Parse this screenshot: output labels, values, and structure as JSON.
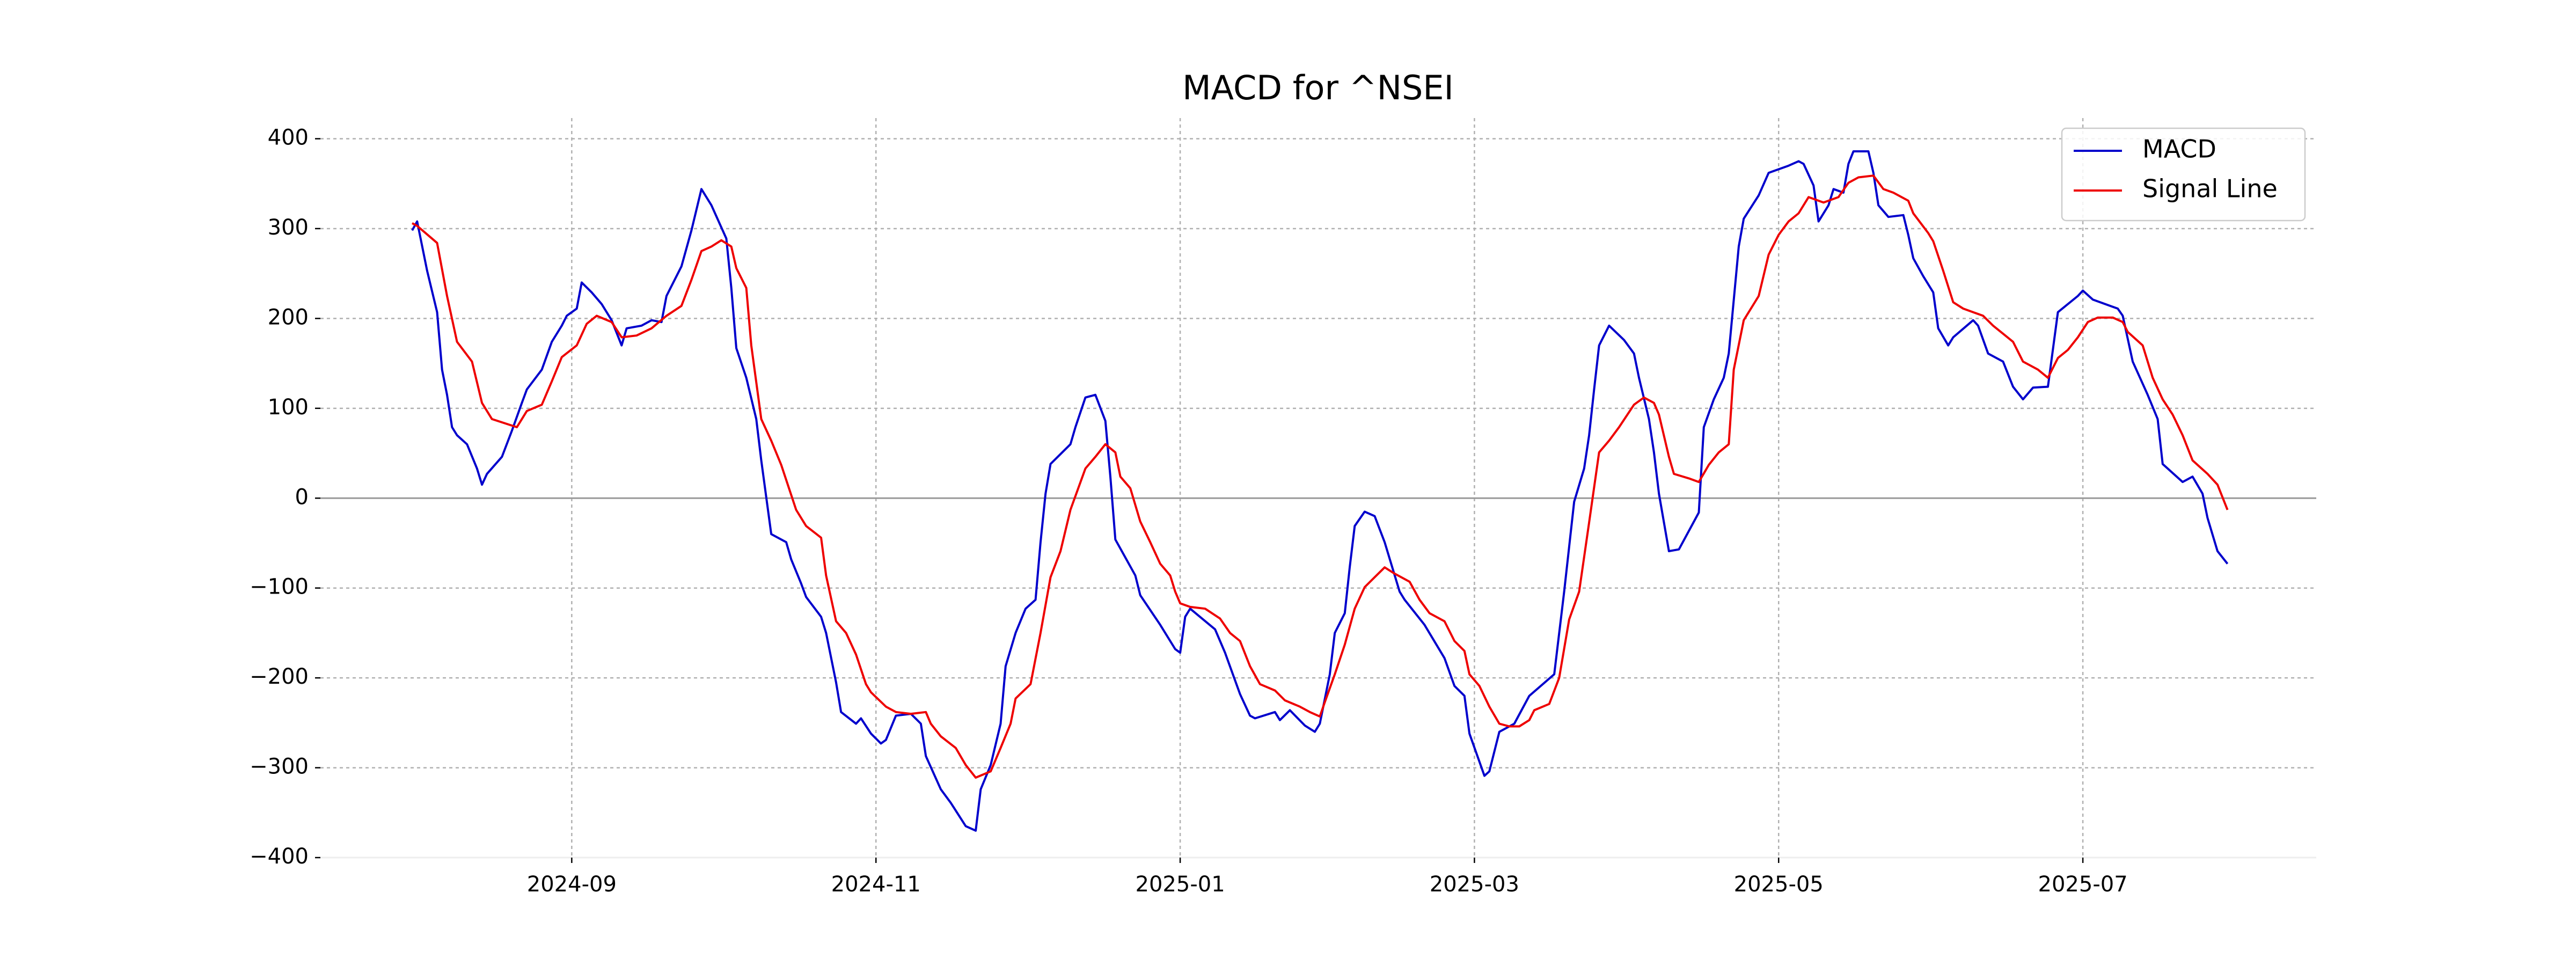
{
  "chart_data": {
    "type": "line",
    "title": "MACD for ^NSEI",
    "grid": true,
    "legend": "upper right",
    "hline": 0,
    "xlim": [
      -16.4,
      383.8
    ],
    "xticks": [
      {
        "value": 34,
        "label": "2024-09"
      },
      {
        "value": 95,
        "label": "2024-11"
      },
      {
        "value": 156,
        "label": "2025-01"
      },
      {
        "value": 215,
        "label": "2025-03"
      },
      {
        "value": 276,
        "label": "2025-05"
      },
      {
        "value": 337,
        "label": "2025-07"
      }
    ],
    "ylim": [
      -400,
      423
    ],
    "yticks": [
      {
        "value": -400,
        "label": "−400"
      },
      {
        "value": -300,
        "label": "−300"
      },
      {
        "value": -200,
        "label": "−200"
      },
      {
        "value": -100,
        "label": "−100"
      },
      0,
      100,
      200,
      300,
      400
    ],
    "series": [
      {
        "name": "MACD",
        "color": "#0000cc",
        "x": [
          2,
          3,
          5,
          7,
          8,
          9,
          10,
          11,
          13,
          15,
          16,
          17,
          20,
          22,
          24,
          25,
          28,
          30,
          32,
          33,
          35,
          36,
          38,
          40,
          42,
          44,
          45,
          48,
          50,
          52,
          53,
          56,
          58,
          60,
          62,
          65,
          66,
          67,
          69,
          71,
          72,
          74,
          77,
          78,
          80,
          81,
          84,
          85,
          87,
          88,
          91,
          92,
          94,
          96,
          97,
          99,
          102,
          104,
          105,
          108,
          110,
          113,
          115,
          116,
          118,
          120,
          121,
          123,
          125,
          127,
          128,
          129,
          130,
          134,
          135,
          137,
          139,
          141,
          142,
          143,
          147,
          148,
          152,
          155,
          156,
          157,
          158,
          163,
          165,
          168,
          170,
          171,
          175,
          176,
          178,
          181,
          183,
          184,
          186,
          187,
          189,
          190,
          191,
          193,
          195,
          197,
          200,
          201,
          205,
          209,
          211,
          213,
          214,
          217,
          218,
          220,
          223,
          226,
          231,
          233,
          235,
          237,
          238,
          239,
          240,
          242,
          245,
          247,
          248,
          250,
          251,
          252,
          254,
          256,
          260,
          261,
          263,
          265,
          266,
          268,
          269,
          272,
          274,
          278,
          280,
          281,
          283,
          284,
          286,
          287,
          289,
          290,
          291,
          294,
          295,
          296,
          298,
          301,
          302,
          303,
          305,
          307,
          308,
          310,
          311,
          315,
          316,
          318,
          321,
          323,
          325,
          327,
          330,
          332,
          336,
          337,
          339,
          344,
          345,
          347,
          350,
          352,
          353,
          357,
          359,
          361,
          362,
          364,
          366
        ],
        "values": [
          298,
          308,
          253,
          207,
          143,
          115,
          79,
          70,
          60,
          33,
          15,
          27,
          46,
          75,
          106,
          121,
          143,
          174,
          192,
          203,
          211,
          240,
          229,
          216,
          198,
          170,
          189,
          192,
          198,
          196,
          225,
          258,
          298,
          344,
          326,
          289,
          234,
          167,
          134,
          88,
          42,
          -40,
          -49,
          -68,
          -95,
          -110,
          -132,
          -150,
          -205,
          -238,
          -251,
          -245,
          -262,
          -273,
          -269,
          -242,
          -240,
          -251,
          -287,
          -324,
          -339,
          -365,
          -370,
          -324,
          -297,
          -251,
          -187,
          -150,
          -123,
          -113,
          -49,
          5,
          38,
          60,
          79,
          112,
          115,
          86,
          24,
          -46,
          -86,
          -108,
          -141,
          -168,
          -172,
          -132,
          -123,
          -146,
          -172,
          -218,
          -242,
          -245,
          -238,
          -247,
          -236,
          -253,
          -260,
          -251,
          -196,
          -150,
          -128,
          -77,
          -31,
          -15,
          -20,
          -49,
          -104,
          -113,
          -141,
          -178,
          -209,
          -220,
          -262,
          -309,
          -304,
          -260,
          -251,
          -220,
          -196,
          -104,
          -4,
          33,
          70,
          121,
          170,
          192,
          176,
          161,
          134,
          88,
          51,
          5,
          -59,
          -57,
          -16,
          79,
          110,
          134,
          161,
          280,
          311,
          337,
          362,
          370,
          375,
          372,
          348,
          308,
          326,
          344,
          340,
          372,
          386,
          386,
          362,
          326,
          313,
          315,
          293,
          267,
          247,
          229,
          189,
          170,
          179,
          198,
          192,
          161,
          152,
          124,
          110,
          123,
          124,
          207,
          225,
          231,
          221,
          211,
          203,
          152,
          115,
          88,
          38,
          18,
          24,
          5,
          -22,
          -59,
          -73
        ]
      },
      {
        "name": "Signal Line",
        "color": "#ee0000",
        "x": [
          2,
          3,
          7,
          9,
          11,
          14,
          16,
          18,
          23,
          24,
          25,
          28,
          30,
          32,
          35,
          37,
          39,
          42,
          44,
          47,
          50,
          53,
          56,
          58,
          60,
          62,
          64,
          66,
          67,
          69,
          70,
          72,
          74,
          76,
          79,
          81,
          84,
          85,
          87,
          89,
          91,
          93,
          94,
          97,
          99,
          102,
          105,
          106,
          108,
          111,
          113,
          115,
          118,
          120,
          122,
          123,
          126,
          128,
          130,
          132,
          134,
          137,
          139,
          141,
          143,
          144,
          146,
          148,
          150,
          152,
          154,
          155,
          156,
          158,
          161,
          164,
          166,
          168,
          170,
          172,
          175,
          177,
          180,
          182,
          184,
          185,
          187,
          189,
          191,
          193,
          195,
          197,
          199,
          202,
          204,
          206,
          209,
          211,
          213,
          214,
          216,
          218,
          220,
          222,
          224,
          226,
          227,
          230,
          232,
          234,
          236,
          238,
          240,
          242,
          244,
          247,
          249,
          251,
          252,
          254,
          255,
          258,
          260,
          262,
          264,
          266,
          267,
          269,
          272,
          274,
          276,
          278,
          280,
          282,
          285,
          288,
          290,
          292,
          295,
          297,
          299,
          302,
          303,
          306,
          307,
          309,
          311,
          313,
          315,
          317,
          319,
          321,
          323,
          325,
          328,
          330,
          332,
          334,
          336,
          338,
          340,
          343,
          345,
          346,
          349,
          351,
          353,
          355,
          357,
          359,
          362,
          364,
          366
        ],
        "values": [
          306,
          303,
          284,
          225,
          174,
          152,
          106,
          88,
          79,
          88,
          97,
          104,
          130,
          157,
          170,
          194,
          203,
          196,
          179,
          181,
          189,
          203,
          214,
          243,
          275,
          280,
          287,
          280,
          256,
          234,
          170,
          88,
          64,
          37,
          -13,
          -31,
          -44,
          -86,
          -137,
          -150,
          -174,
          -207,
          -216,
          -232,
          -238,
          -240,
          -238,
          -251,
          -265,
          -278,
          -297,
          -311,
          -304,
          -278,
          -251,
          -223,
          -207,
          -150,
          -88,
          -59,
          -13,
          33,
          46,
          60,
          51,
          24,
          11,
          -26,
          -49,
          -73,
          -86,
          -104,
          -117,
          -121,
          -123,
          -134,
          -150,
          -159,
          -187,
          -207,
          -214,
          -225,
          -232,
          -238,
          -243,
          -227,
          -196,
          -163,
          -123,
          -99,
          -88,
          -77,
          -84,
          -93,
          -113,
          -128,
          -137,
          -159,
          -170,
          -196,
          -209,
          -232,
          -251,
          -254,
          -254,
          -247,
          -236,
          -229,
          -200,
          -135,
          -104,
          -27,
          51,
          64,
          79,
          104,
          112,
          106,
          93,
          46,
          27,
          22,
          18,
          37,
          51,
          60,
          143,
          198,
          225,
          271,
          293,
          308,
          317,
          335,
          329,
          335,
          351,
          357,
          359,
          344,
          340,
          331,
          317,
          295,
          286,
          253,
          218,
          211,
          207,
          203,
          192,
          183,
          174,
          152,
          143,
          134,
          156,
          165,
          179,
          196,
          201,
          201,
          196,
          185,
          170,
          134,
          110,
          93,
          70,
          42,
          27,
          15,
          -13
        ]
      }
    ]
  }
}
